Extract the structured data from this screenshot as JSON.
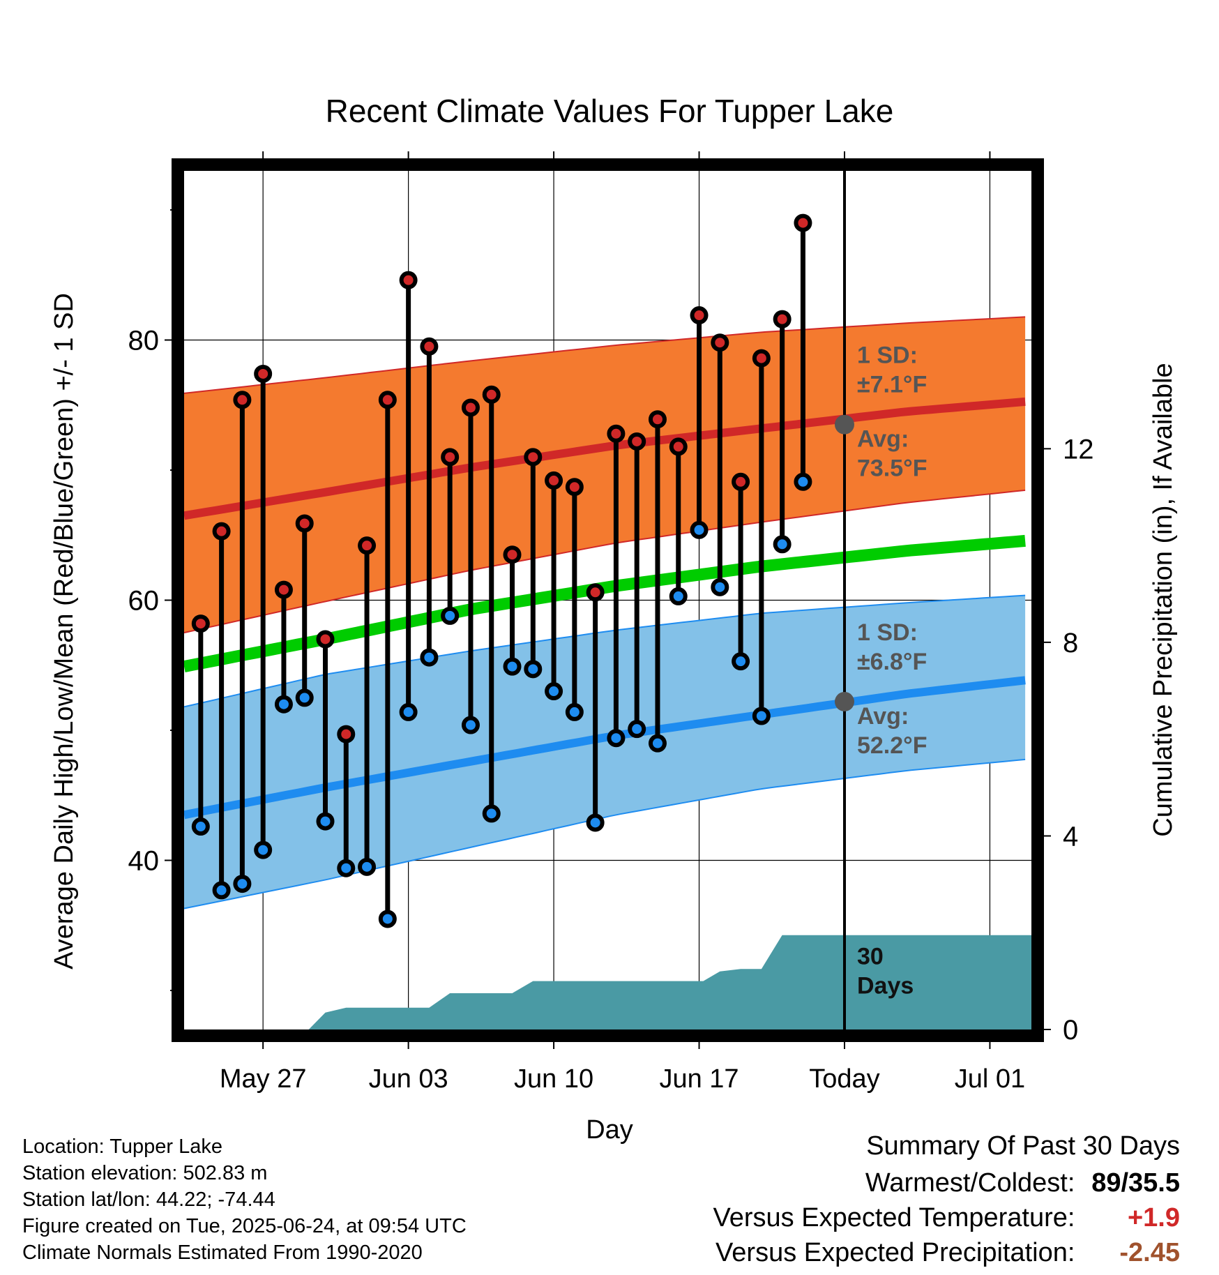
{
  "chart_data": {
    "type": "line",
    "title": "Recent Climate Values For Tupper Lake",
    "xlabel": "Day",
    "ylabel": "Average Daily High/Low/Mean (Red/Blue/Green) +/- 1 SD",
    "y2label": "Cumulative Precipitation (in), If Available",
    "x_tick_labels": [
      "May 27",
      "Jun 03",
      "Jun 10",
      "Jun 17",
      "Today",
      "Jul 01"
    ],
    "x_tick_days": [
      27,
      34,
      41,
      48,
      55,
      62
    ],
    "y_ticks": [
      40,
      60,
      80
    ],
    "y2_ticks": [
      0,
      4,
      8,
      12
    ],
    "ylim": [
      27,
      93
    ],
    "xlim": [
      23.2,
      64.0
    ],
    "y2_per_degree": 3.72,
    "high_low": [
      {
        "day": 24,
        "high": 58.2,
        "low": 42.6
      },
      {
        "day": 25,
        "high": 65.3,
        "low": 37.7
      },
      {
        "day": 26,
        "high": 75.4,
        "low": 38.2
      },
      {
        "day": 27,
        "high": 77.4,
        "low": 40.8
      },
      {
        "day": 28,
        "high": 60.8,
        "low": 52.0
      },
      {
        "day": 29,
        "high": 65.9,
        "low": 52.5
      },
      {
        "day": 30,
        "high": 57.0,
        "low": 43.0
      },
      {
        "day": 31,
        "high": 49.7,
        "low": 39.4
      },
      {
        "day": 32,
        "high": 64.2,
        "low": 39.5
      },
      {
        "day": 33,
        "high": 75.4,
        "low": 35.5
      },
      {
        "day": 34,
        "high": 84.6,
        "low": 51.4
      },
      {
        "day": 35,
        "high": 79.5,
        "low": 55.6
      },
      {
        "day": 36,
        "high": 71.0,
        "low": 58.8
      },
      {
        "day": 37,
        "high": 74.8,
        "low": 50.4
      },
      {
        "day": 38,
        "high": 75.8,
        "low": 43.6
      },
      {
        "day": 39,
        "high": 63.5,
        "low": 54.9
      },
      {
        "day": 40,
        "high": 71.0,
        "low": 54.7
      },
      {
        "day": 41,
        "high": 69.2,
        "low": 53.0
      },
      {
        "day": 42,
        "high": 68.7,
        "low": 51.4
      },
      {
        "day": 43,
        "high": 60.6,
        "low": 42.9
      },
      {
        "day": 44,
        "high": 72.8,
        "low": 49.4
      },
      {
        "day": 45,
        "high": 72.2,
        "low": 50.1
      },
      {
        "day": 46,
        "high": 73.9,
        "low": 49.0
      },
      {
        "day": 47,
        "high": 71.8,
        "low": 60.3
      },
      {
        "day": 48,
        "high": 81.9,
        "low": 65.4
      },
      {
        "day": 49,
        "high": 79.8,
        "low": 61.0
      },
      {
        "day": 50,
        "high": 69.1,
        "low": 55.3
      },
      {
        "day": 51,
        "high": 78.6,
        "low": 51.1
      },
      {
        "day": 52,
        "high": 81.6,
        "low": 64.3
      },
      {
        "day": 53,
        "high": 89.0,
        "low": 69.1
      }
    ],
    "normals": {
      "days": [
        23.2,
        30,
        37,
        44,
        51,
        58,
        64.0
      ],
      "high_mean": [
        66.5,
        68.3,
        70.2,
        71.9,
        73.2,
        74.5,
        75.3
      ],
      "high_plus_sd": [
        75.9,
        77.1,
        78.4,
        79.6,
        80.6,
        81.3,
        81.8
      ],
      "high_minus_sd": [
        57.5,
        59.9,
        62.3,
        64.4,
        66.0,
        67.5,
        68.5
      ],
      "mean": [
        54.9,
        57.0,
        59.3,
        61.1,
        62.6,
        63.8,
        64.6
      ],
      "low_mean": [
        43.5,
        45.6,
        47.6,
        49.6,
        51.2,
        52.8,
        53.9
      ],
      "low_plus_sd": [
        51.8,
        54.3,
        56.1,
        57.7,
        59.0,
        59.8,
        60.4
      ],
      "low_minus_sd": [
        36.3,
        38.5,
        41.0,
        43.5,
        45.5,
        46.9,
        47.8
      ]
    },
    "precip_cumulative_in": [
      {
        "day": 23.2,
        "value": 0
      },
      {
        "day": 29.2,
        "value": 0
      },
      {
        "day": 30,
        "value": 0.35
      },
      {
        "day": 31,
        "value": 0.45
      },
      {
        "day": 35,
        "value": 0.45
      },
      {
        "day": 36,
        "value": 0.75
      },
      {
        "day": 39,
        "value": 0.75
      },
      {
        "day": 40,
        "value": 1.0
      },
      {
        "day": 47,
        "value": 1.0
      },
      {
        "day": 48.2,
        "value": 1.0
      },
      {
        "day": 49,
        "value": 1.2
      },
      {
        "day": 50,
        "value": 1.25
      },
      {
        "day": 51,
        "value": 1.25
      },
      {
        "day": 52,
        "value": 1.95
      },
      {
        "day": 64.0,
        "value": 1.95
      }
    ],
    "high_annotation": {
      "sd_label": "1 SD:",
      "sd_value": "±7.1°F",
      "avg_label": "Avg:",
      "avg_value": "73.5°F",
      "avg": 73.5
    },
    "low_annotation": {
      "sd_label": "1 SD:",
      "sd_value": "±6.8°F",
      "avg_label": "Avg:",
      "avg_value": "52.2°F",
      "avg": 52.2
    },
    "precip_annotation": [
      "30",
      "Days"
    ],
    "today_day": 55,
    "colors": {
      "high_band": "#f47a2f",
      "high_line": "#d02828",
      "low_band": "#83c1e8",
      "low_line": "#1e8cf0",
      "mean_line": "#00cc00",
      "precip": "#4a9aa4",
      "high_dot": "#d02828",
      "low_dot": "#1e8cf0",
      "annotation_text": "#555555",
      "avg_marker": "#555555"
    }
  },
  "info": {
    "location": "Location: Tupper Lake",
    "elevation": "Station elevation: 502.83 m",
    "latlon": "Station lat/lon: 44.22; -74.44",
    "created": "Figure created on Tue, 2025-06-24, at 09:54 UTC",
    "normals": "Climate Normals Estimated From 1990-2020"
  },
  "summary": {
    "heading": "Summary Of Past 30 Days",
    "warmest_label": "Warmest/Coldest:",
    "warmest_value": "89/35.5",
    "temp_label": "Versus Expected Temperature:",
    "temp_value": "+1.9",
    "temp_color": "#d02828",
    "precip_label": "Versus Expected Precipitation:",
    "precip_value": "-2.45",
    "precip_color": "#a0522d"
  }
}
